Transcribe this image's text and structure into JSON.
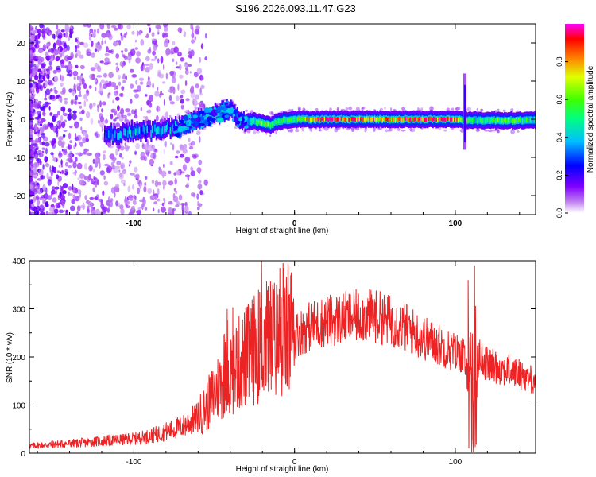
{
  "chart_data": [
    {
      "type": "heatmap",
      "title": "S196.2026.093.11.47.G23",
      "xlabel": "Height of straight line (km)",
      "ylabel": "Frequency (Hz)",
      "xlim": [
        -165,
        150
      ],
      "ylim": [
        -25,
        25
      ],
      "xticks": [
        -100,
        0,
        100
      ],
      "xtick_labels": [
        "-100",
        "0",
        "100"
      ],
      "yticks": [
        20,
        10,
        0,
        -10,
        -20
      ],
      "ytick_labels": [
        "20",
        "10",
        "0",
        "-10",
        "-20"
      ],
      "colorbar": {
        "label": "Normalized spectral amplitude",
        "range": [
          0,
          1
        ],
        "ticks": [
          0.0,
          0.2,
          0.4,
          0.6,
          0.8
        ],
        "tick_labels": [
          "0.0",
          "0.2",
          "0.4",
          "0.6",
          "0.8"
        ],
        "colormap": [
          "#ffffff",
          "#a020f0",
          "#0000ff",
          "#00ffff",
          "#00ff00",
          "#ffff00",
          "#ff7f00",
          "#ff0000",
          "#ff00ff"
        ]
      },
      "ridge": {
        "description": "main spectral ridge frequency (Hz) vs height (km)",
        "x": [
          -118,
          -110,
          -100,
          -90,
          -80,
          -70,
          -60,
          -50,
          -45,
          -40,
          -35,
          -30,
          -25,
          -20,
          -15,
          -10,
          -5,
          0,
          10,
          20,
          40,
          60,
          80,
          100,
          110,
          130,
          150
        ],
        "y": [
          -4,
          -4,
          -3,
          -3,
          -2.5,
          -2,
          0,
          1,
          2,
          2.5,
          0,
          -0.5,
          -0.5,
          -1,
          -1.5,
          -0.5,
          -0.2,
          0,
          0,
          0,
          0,
          0,
          0,
          0,
          -0.3,
          -0.3,
          -0.3
        ],
        "amplitude": [
          0.3,
          0.3,
          0.35,
          0.35,
          0.35,
          0.35,
          0.4,
          0.45,
          0.4,
          0.4,
          0.4,
          0.35,
          0.45,
          0.6,
          0.55,
          0.5,
          0.55,
          0.55,
          0.75,
          0.9,
          0.85,
          0.75,
          0.9,
          0.85,
          0.45,
          0.6,
          0.45
        ]
      },
      "spike": {
        "x": 106,
        "ymin": -8,
        "ymax": 12
      }
    },
    {
      "type": "line",
      "xlabel": "Height of straight line (km)",
      "ylabel": "SNR (10 * v/v)",
      "xlim": [
        -165,
        150
      ],
      "ylim": [
        0,
        400
      ],
      "xticks": [
        -100,
        0,
        100
      ],
      "xtick_labels": [
        "-100",
        "0",
        "100"
      ],
      "yticks": [
        0,
        100,
        200,
        300,
        400
      ],
      "ytick_labels": [
        "0",
        "100",
        "200",
        "300",
        "400"
      ],
      "color": "#ee2222",
      "series": [
        {
          "name": "SNR",
          "x": [
            -165,
            -150,
            -130,
            -110,
            -100,
            -90,
            -80,
            -70,
            -60,
            -55,
            -50,
            -45,
            -40,
            -35,
            -30,
            -25,
            -20,
            -15,
            -10,
            -5,
            0,
            5,
            10,
            15,
            20,
            30,
            40,
            50,
            60,
            70,
            80,
            90,
            100,
            105,
            108,
            110,
            112,
            115,
            120,
            130,
            140,
            150
          ],
          "y": [
            15,
            18,
            22,
            28,
            30,
            35,
            45,
            55,
            75,
            95,
            125,
            150,
            170,
            185,
            200,
            215,
            230,
            240,
            235,
            240,
            245,
            255,
            265,
            270,
            275,
            280,
            285,
            285,
            275,
            260,
            240,
            225,
            210,
            205,
            150,
            80,
            150,
            200,
            185,
            175,
            165,
            150
          ]
        }
      ],
      "peaks": [
        {
          "x": -20.5,
          "y": 400
        },
        {
          "x": -7,
          "y": 385
        },
        {
          "x": -13,
          "y": 340
        },
        {
          "x": 48,
          "y": 330
        },
        {
          "x": 112,
          "y": 390
        },
        {
          "x": 108,
          "y": 360
        },
        {
          "x": 111,
          "y": 30
        }
      ]
    }
  ]
}
